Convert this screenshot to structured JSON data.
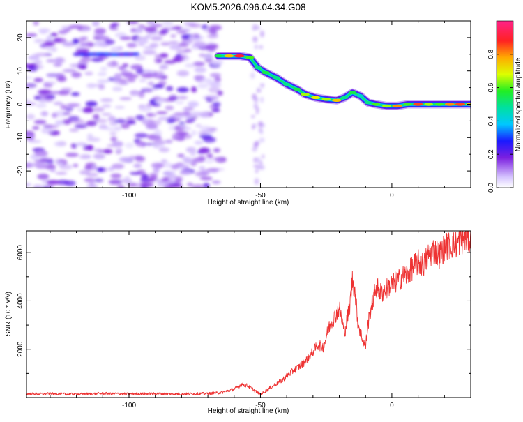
{
  "title": "KOM5.2026.096.04.34.G08",
  "chart_data": [
    {
      "type": "heatmap",
      "name": "spectrogram",
      "xlabel": "Height of straight line (km)",
      "ylabel": "Frequency (Hz)",
      "xlim": [
        -139,
        30
      ],
      "ylim": [
        -25,
        25
      ],
      "x_ticks": [
        -100,
        -50,
        0
      ],
      "y_ticks": [
        -20,
        -10,
        0,
        10,
        20
      ],
      "colorbar": {
        "label": "Normalized spectral amplitude",
        "range": [
          0,
          1
        ],
        "ticks": [
          "0.0",
          "0.2",
          "0.4",
          "0.6",
          "0.8"
        ]
      },
      "ridge": [
        {
          "x": -66,
          "y": 14.5,
          "amp": 0.55
        },
        {
          "x": -62,
          "y": 14.5,
          "amp": 0.75
        },
        {
          "x": -58,
          "y": 14.5,
          "amp": 0.9
        },
        {
          "x": -54,
          "y": 14,
          "amp": 0.6
        },
        {
          "x": -51,
          "y": 11,
          "amp": 0.5
        },
        {
          "x": -48,
          "y": 9.5,
          "amp": 0.55
        },
        {
          "x": -44,
          "y": 8,
          "amp": 0.5
        },
        {
          "x": -40,
          "y": 6,
          "amp": 0.5
        },
        {
          "x": -36,
          "y": 4.5,
          "amp": 0.55
        },
        {
          "x": -33,
          "y": 3,
          "amp": 0.65
        },
        {
          "x": -29,
          "y": 2,
          "amp": 0.7
        },
        {
          "x": -25,
          "y": 1.5,
          "amp": 0.65
        },
        {
          "x": -21,
          "y": 1.2,
          "amp": 0.75
        },
        {
          "x": -18,
          "y": 2,
          "amp": 0.5
        },
        {
          "x": -15,
          "y": 3.5,
          "amp": 0.55
        },
        {
          "x": -12,
          "y": 2.5,
          "amp": 0.45
        },
        {
          "x": -9,
          "y": 0.5,
          "amp": 0.5
        },
        {
          "x": -6,
          "y": 0,
          "amp": 0.6
        },
        {
          "x": -2,
          "y": -0.5,
          "amp": 0.65
        },
        {
          "x": 2,
          "y": -0.5,
          "amp": 0.8
        },
        {
          "x": 6,
          "y": 0,
          "amp": 0.6
        },
        {
          "x": 10,
          "y": 0,
          "amp": 0.85
        },
        {
          "x": 14,
          "y": 0,
          "amp": 0.65
        },
        {
          "x": 18,
          "y": 0,
          "amp": 0.6
        },
        {
          "x": 22,
          "y": 0,
          "amp": 0.8
        },
        {
          "x": 26,
          "y": 0,
          "amp": 0.85
        },
        {
          "x": 30,
          "y": 0,
          "amp": 0.75
        }
      ],
      "noise_region": {
        "x_from": -139,
        "x_to": -65,
        "y_from": -25,
        "y_to": 25
      },
      "faint_strip": {
        "x_from": -53,
        "x_to": -49
      },
      "early_ridge": {
        "x_from": -120,
        "x_to": -97,
        "y": 15
      }
    },
    {
      "type": "line",
      "name": "snr",
      "xlabel": "Height of straight line (km)",
      "ylabel": "SNR (10 * v/v)",
      "xlim": [
        -139,
        30
      ],
      "ylim": [
        0,
        6900
      ],
      "x_ticks": [
        -100,
        -50,
        0
      ],
      "y_ticks": [
        2000,
        4000,
        6000
      ],
      "color": "#ee3333",
      "series": [
        {
          "x": [
            -139,
            -130,
            -120,
            -110,
            -100,
            -90,
            -80,
            -70,
            -65,
            -60,
            -57,
            -55,
            -53,
            -51,
            -50,
            -49,
            -47,
            -45,
            -42,
            -40,
            -37,
            -35,
            -32,
            -30,
            -28,
            -26,
            -24,
            -22,
            -20,
            -18,
            -16,
            -15,
            -14,
            -13,
            -12,
            -10,
            -9,
            -8,
            -7,
            -6,
            -4,
            -2,
            0,
            2,
            4,
            6,
            8,
            10,
            12,
            14,
            16,
            18,
            20,
            22,
            24,
            26,
            28,
            30
          ],
          "values": [
            150,
            160,
            140,
            170,
            150,
            160,
            150,
            170,
            200,
            350,
            550,
            500,
            350,
            200,
            120,
            200,
            350,
            500,
            700,
            900,
            1150,
            1300,
            1600,
            1900,
            2200,
            2100,
            2900,
            3300,
            3700,
            2700,
            3800,
            4900,
            4400,
            3200,
            2700,
            2100,
            3100,
            3700,
            4100,
            4600,
            4300,
            4500,
            4700,
            4800,
            5000,
            5100,
            5400,
            5600,
            5500,
            5900,
            6100,
            5900,
            6200,
            6300,
            6300,
            6500,
            6600,
            6500
          ]
        }
      ]
    }
  ]
}
